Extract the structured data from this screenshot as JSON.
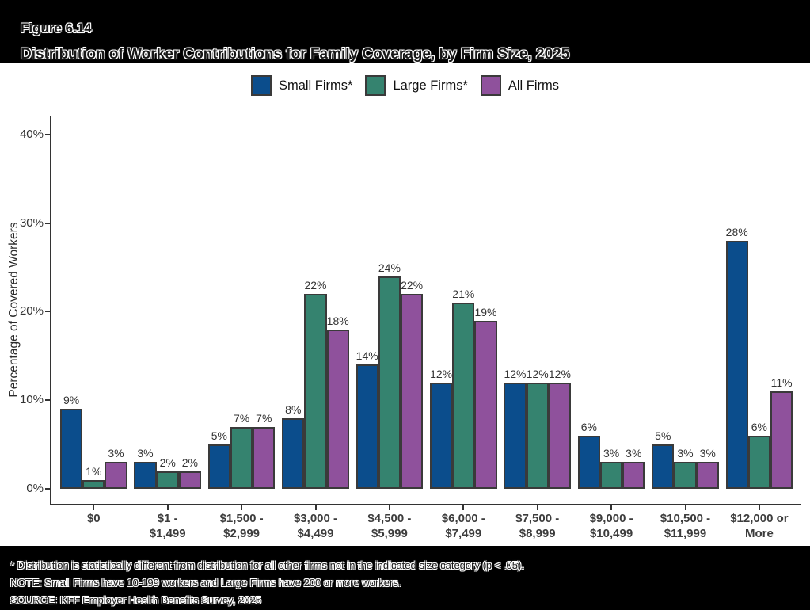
{
  "figure": {
    "label": "Figure 6.14",
    "title": "Distribution of Worker Contributions for Family Coverage, by Firm Size, 2025"
  },
  "chart_data": {
    "type": "bar",
    "title": "Distribution of Worker Contributions for Family Coverage, by Firm Size, 2025",
    "xlabel": "",
    "ylabel": "Percentage of Covered Workers",
    "ylim": [
      0,
      42
    ],
    "yticks": [
      0,
      10,
      20,
      30,
      40
    ],
    "ytick_labels": [
      "0%",
      "10%",
      "20%",
      "30%",
      "40%"
    ],
    "grid": false,
    "legend_position": "top",
    "value_suffix": "%",
    "categories": [
      [
        "$0"
      ],
      [
        "$1 -",
        "$1,499"
      ],
      [
        "$1,500 -",
        "$2,999"
      ],
      [
        "$3,000 -",
        "$4,499"
      ],
      [
        "$4,500 -",
        "$5,999"
      ],
      [
        "$6,000 -",
        "$7,499"
      ],
      [
        "$7,500 -",
        "$8,999"
      ],
      [
        "$9,000 -",
        "$10,499"
      ],
      [
        "$10,500 -",
        "$11,999"
      ],
      [
        "$12,000 or",
        "More"
      ]
    ],
    "series": [
      {
        "name": "Small Firms*",
        "color": "#0B4D8C",
        "values": [
          9,
          3,
          5,
          8,
          14,
          12,
          12,
          6,
          5,
          28
        ]
      },
      {
        "name": "Large Firms*",
        "color": "#35836F",
        "values": [
          1,
          2,
          7,
          22,
          24,
          21,
          12,
          3,
          3,
          6
        ]
      },
      {
        "name": "All Firms",
        "color": "#8F519C",
        "values": [
          3,
          2,
          7,
          18,
          22,
          19,
          12,
          3,
          3,
          11
        ]
      }
    ],
    "colors": {
      "bar_border": "#3a3a3a",
      "axis": "#333333"
    }
  },
  "footnotes": {
    "line1": "* Distribution is statistically different from distribution for all other firms not in the indicated size category (p < .05).",
    "line2": "NOTE: Small Firms have 10-199 workers and Large Firms have 200 or more workers.",
    "line3": "SOURCE: KFF Employer Health Benefits Survey, 2025"
  }
}
